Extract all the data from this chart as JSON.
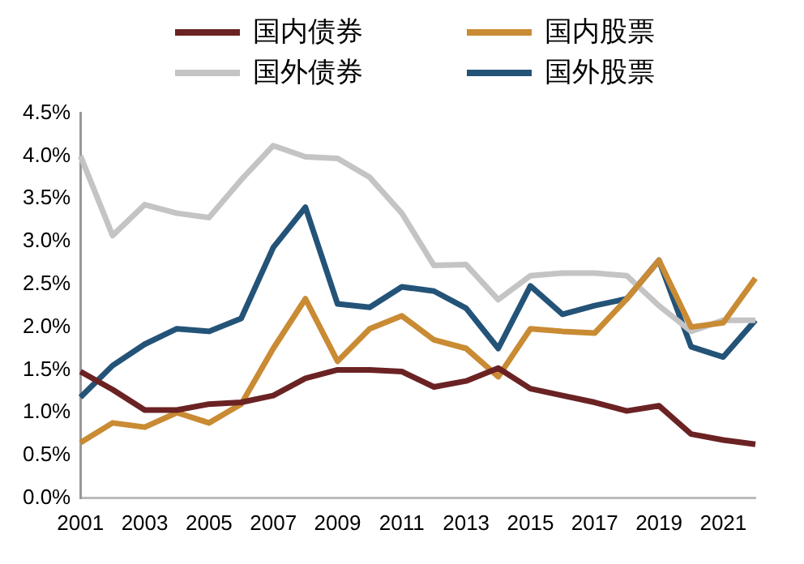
{
  "chart_data": {
    "type": "line",
    "categories": [
      "2001",
      null,
      "2003",
      null,
      "2005",
      null,
      "2007",
      null,
      "2009",
      null,
      "2011",
      null,
      "2013",
      null,
      "2015",
      null,
      "2017",
      null,
      "2019",
      null,
      "2021",
      null
    ],
    "series": [
      {
        "name": "国内债券",
        "color": "#6b2223",
        "values": [
          1.48,
          1.27,
          1.03,
          1.03,
          1.1,
          1.12,
          1.2,
          1.4,
          1.5,
          1.5,
          1.48,
          1.3,
          1.37,
          1.52,
          1.28,
          1.2,
          1.12,
          1.02,
          1.08,
          0.75,
          0.68,
          0.63
        ]
      },
      {
        "name": "国内股票",
        "color": "#c98b33",
        "values": [
          0.65,
          0.88,
          0.83,
          1.0,
          0.88,
          1.1,
          1.75,
          2.33,
          1.6,
          1.98,
          2.13,
          1.85,
          1.75,
          1.42,
          1.98,
          1.95,
          1.93,
          2.33,
          2.78,
          2.0,
          2.05,
          2.57
        ]
      },
      {
        "name": "国外债券",
        "color": "#c4c4c4",
        "values": [
          4.0,
          3.07,
          3.43,
          3.33,
          3.28,
          3.72,
          4.12,
          3.99,
          3.97,
          3.75,
          3.33,
          2.72,
          2.73,
          2.32,
          2.6,
          2.63,
          2.63,
          2.6,
          2.25,
          1.95,
          2.08,
          2.08
        ]
      },
      {
        "name": "国外股票",
        "color": "#245378",
        "values": [
          1.18,
          1.55,
          1.8,
          1.98,
          1.95,
          2.1,
          2.93,
          3.4,
          2.27,
          2.23,
          2.47,
          2.42,
          2.22,
          1.75,
          2.48,
          2.15,
          2.25,
          2.33,
          2.78,
          1.77,
          1.65,
          2.08
        ]
      }
    ],
    "ylim": [
      0,
      4.5
    ],
    "yticks": [
      {
        "value": 0,
        "label": "0.0%"
      },
      {
        "value": 0.5,
        "label": "0.5%"
      },
      {
        "value": 1,
        "label": "1.0%"
      },
      {
        "value": 1.5,
        "label": "1.5%"
      },
      {
        "value": 2,
        "label": "2.0%"
      },
      {
        "value": 2.5,
        "label": "2.5%"
      },
      {
        "value": 3,
        "label": "3.0%"
      },
      {
        "value": 3.5,
        "label": "3.5%"
      },
      {
        "value": 4,
        "label": "4.0%"
      },
      {
        "value": 4.5,
        "label": "4.5%"
      }
    ],
    "grid": false,
    "legend": "top",
    "marker": "none",
    "line_style": "solid"
  }
}
